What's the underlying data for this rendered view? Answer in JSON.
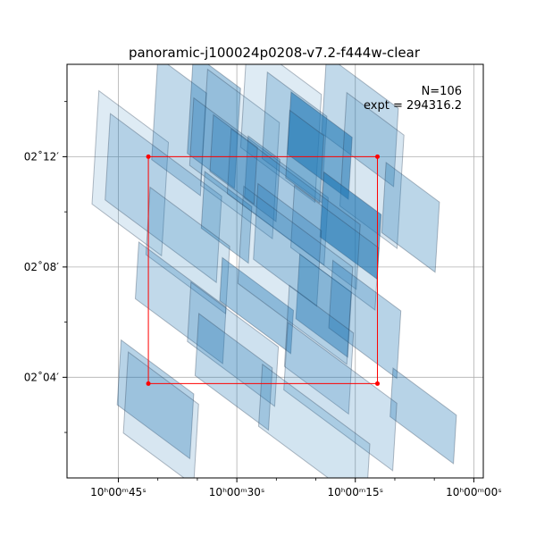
{
  "chart_data": {
    "type": "footprint-map",
    "title": "panoramic-j100024p0208-v7.2-f444w-clear",
    "xlabel": "",
    "ylabel": "",
    "x_axis": {
      "quantity": "right ascension (seconds past 10h00m)",
      "range": [
        51.5,
        -1.2
      ],
      "major_ticks": [
        {
          "value": 45,
          "label": "10ʰ00ᵐ45ˢ"
        },
        {
          "value": 30,
          "label": "10ʰ00ᵐ30ˢ"
        },
        {
          "value": 15,
          "label": "10ʰ00ᵐ15ˢ"
        },
        {
          "value": 0,
          "label": "10ʰ00ᵐ00ˢ"
        }
      ],
      "minor_ticks": [
        40,
        35,
        25,
        20,
        10,
        5
      ]
    },
    "y_axis": {
      "quantity": "declination (arcmin past +02°)",
      "range": [
        0.35,
        15.35
      ],
      "major_ticks": [
        {
          "value": 12,
          "label": "02˚12′"
        },
        {
          "value": 8,
          "label": "02˚08′"
        },
        {
          "value": 4,
          "label": "02˚04′"
        }
      ],
      "minor_ticks": [
        14,
        10,
        6,
        2
      ]
    },
    "grid": true,
    "annotation": {
      "n_label": "N=106",
      "expt_label": "expt = 294316.2",
      "placement": "top-right"
    },
    "selection_box": {
      "color": "#ff0000",
      "ra_min": 12.2,
      "ra_max": 41.2,
      "dec_min": 3.77,
      "dec_max": 12.0
    },
    "footprint_color": "#1f77b4",
    "footprints": [
      {
        "ra": 43.5,
        "dec": 11.4,
        "width": 9,
        "height": 4.2,
        "angle": 12,
        "alpha": 0.15
      },
      {
        "ra": 37.3,
        "dec": 13.1,
        "width": 6.3,
        "height": 3.8,
        "angle": 12,
        "alpha": 0.28
      },
      {
        "ra": 32.9,
        "dec": 13.3,
        "width": 6.1,
        "height": 3.7,
        "angle": 12,
        "alpha": 0.38
      },
      {
        "ra": 29.6,
        "dec": 12.1,
        "width": 9.3,
        "height": 4.3,
        "angle": 12,
        "alpha": 0.15
      },
      {
        "ra": 24.4,
        "dec": 13.3,
        "width": 9.6,
        "height": 4.0,
        "angle": 12,
        "alpha": 0.15
      },
      {
        "ra": 22.7,
        "dec": 12.7,
        "width": 7.7,
        "height": 3.2,
        "angle": 12,
        "alpha": 0.25
      },
      {
        "ra": 14.4,
        "dec": 13.3,
        "width": 9.3,
        "height": 2.9,
        "angle": 12,
        "alpha": 0.28
      },
      {
        "ra": 19.5,
        "dec": 12.4,
        "width": 7.9,
        "height": 2.3,
        "angle": 12,
        "alpha": 0.62
      },
      {
        "ra": 12.9,
        "dec": 11.5,
        "width": 7.4,
        "height": 4.2,
        "angle": 12,
        "alpha": 0.18
      },
      {
        "ra": 39.3,
        "dec": 10.5,
        "width": 14.4,
        "height": 3.2,
        "angle": 12,
        "alpha": 0.22
      },
      {
        "ra": 27.2,
        "dec": 11.1,
        "width": 17.4,
        "height": 2.5,
        "angle": 12,
        "alpha": 0.22
      },
      {
        "ra": 26.8,
        "dec": 11.2,
        "width": 4.1,
        "height": 2.3,
        "angle": 12,
        "alpha": 0.32
      },
      {
        "ra": 31.3,
        "dec": 9.8,
        "width": 6.1,
        "height": 2.1,
        "angle": 12,
        "alpha": 0.34
      },
      {
        "ra": 15.6,
        "dec": 9.5,
        "width": 7.4,
        "height": 2.4,
        "angle": 12,
        "alpha": 0.65
      },
      {
        "ra": 8.0,
        "dec": 9.8,
        "width": 6.9,
        "height": 2.6,
        "angle": 12,
        "alpha": 0.3
      },
      {
        "ra": 22.8,
        "dec": 10.1,
        "width": 16.7,
        "height": 2.4,
        "angle": 12,
        "alpha": 0.22
      },
      {
        "ra": 36.2,
        "dec": 8.6,
        "width": 10.3,
        "height": 2.5,
        "angle": 12,
        "alpha": 0.2
      },
      {
        "ra": 17.6,
        "dec": 8.7,
        "width": 10.9,
        "height": 2.3,
        "angle": 12,
        "alpha": 0.2
      },
      {
        "ra": 23.6,
        "dec": 8.8,
        "width": 8.2,
        "height": 2.8,
        "angle": 12,
        "alpha": 0.28
      },
      {
        "ra": 37.1,
        "dec": 6.7,
        "width": 11.3,
        "height": 2.1,
        "angle": 12,
        "alpha": 0.28
      },
      {
        "ra": 27.5,
        "dec": 6.6,
        "width": 9.2,
        "height": 1.6,
        "angle": 12,
        "alpha": 0.42
      },
      {
        "ra": 19.0,
        "dec": 6.6,
        "width": 6.7,
        "height": 2.4,
        "angle": 12,
        "alpha": 0.45
      },
      {
        "ra": 13.8,
        "dec": 6.1,
        "width": 8.8,
        "height": 2.5,
        "angle": 12,
        "alpha": 0.32
      },
      {
        "ra": 22.6,
        "dec": 7.7,
        "width": 14.1,
        "height": 3.6,
        "angle": 12,
        "alpha": 0.16
      },
      {
        "ra": 30.5,
        "dec": 5.2,
        "width": 11.3,
        "height": 2.2,
        "angle": 12,
        "alpha": 0.22
      },
      {
        "ra": 19.6,
        "dec": 5.0,
        "width": 8.3,
        "height": 3.0,
        "angle": 12,
        "alpha": 0.22
      },
      {
        "ra": 40.3,
        "dec": 3.2,
        "width": 9.4,
        "height": 2.4,
        "angle": 12,
        "alpha": 0.32
      },
      {
        "ra": 30.4,
        "dec": 4.2,
        "width": 9.5,
        "height": 2.3,
        "angle": 12,
        "alpha": 0.28
      },
      {
        "ra": 6.4,
        "dec": 2.6,
        "width": 8.2,
        "height": 1.8,
        "angle": 12,
        "alpha": 0.32
      },
      {
        "ra": 16.9,
        "dec": 3.3,
        "width": 14.1,
        "height": 2.5,
        "angle": 12,
        "alpha": 0.22
      },
      {
        "ra": 20.2,
        "dec": 1.9,
        "width": 13.9,
        "height": 2.3,
        "angle": 12,
        "alpha": 0.2
      },
      {
        "ra": 39.6,
        "dec": 2.5,
        "width": 9.1,
        "height": 3.0,
        "angle": 12,
        "alpha": 0.18
      },
      {
        "ra": 21.4,
        "dec": 12.0,
        "width": 4.4,
        "height": 2.5,
        "angle": 12,
        "alpha": 0.35
      },
      {
        "ra": 30.4,
        "dec": 11.9,
        "width": 5.7,
        "height": 2.1,
        "angle": 12,
        "alpha": 0.28
      }
    ]
  }
}
